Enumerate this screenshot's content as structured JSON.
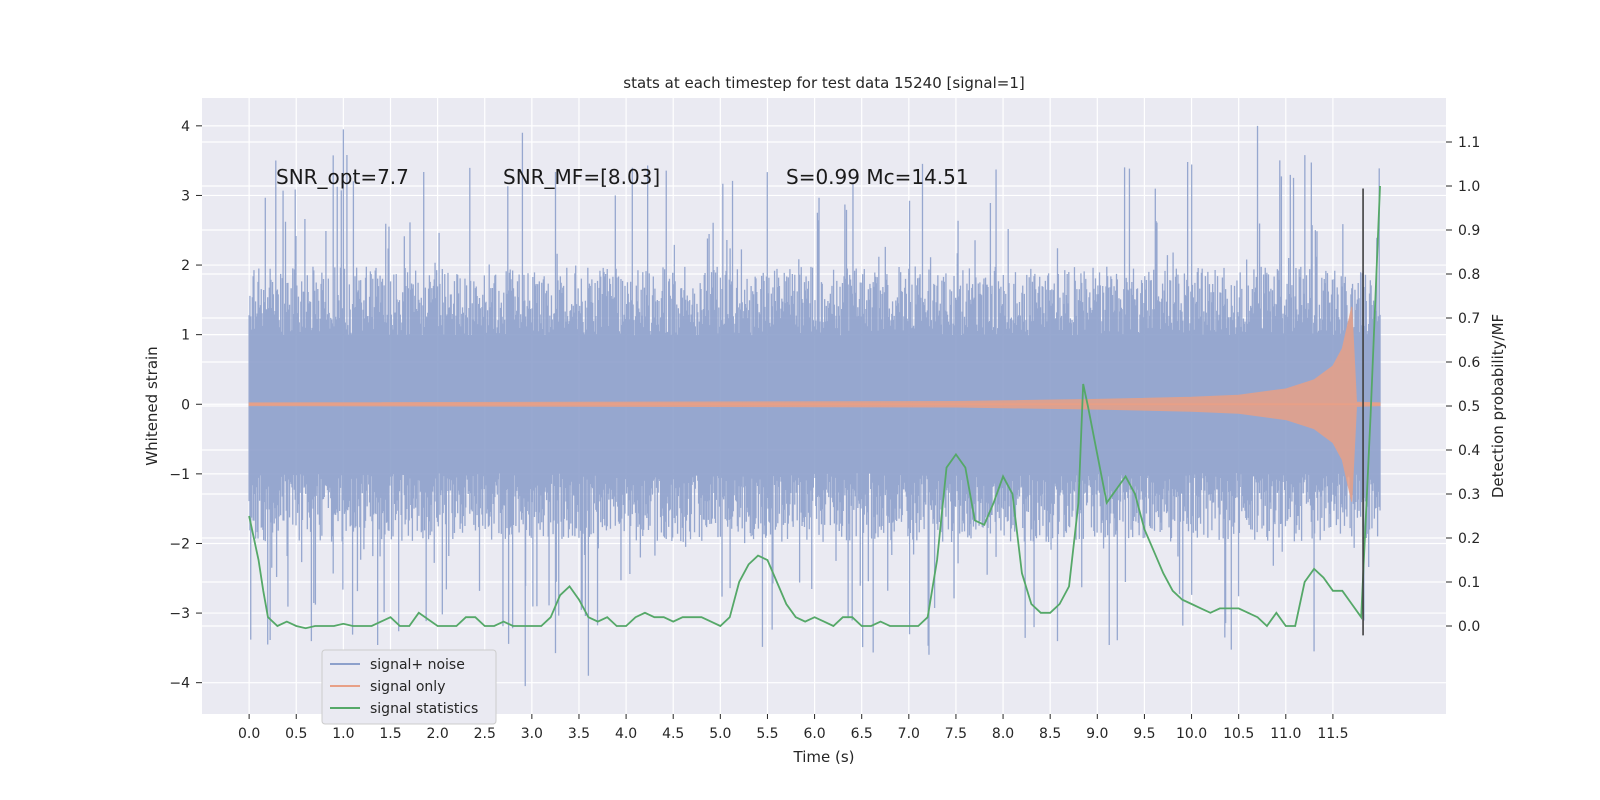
{
  "chart_data": {
    "type": "line",
    "title": "stats at each timestep for test data 15240 [signal=1]",
    "xlabel": "Time (s)",
    "ylabel_left": "Whitened strain",
    "ylabel_right": "Detection probability/MF",
    "xlim": [
      -0.5,
      12.7
    ],
    "ylim_left": [
      -4.45,
      4.4
    ],
    "ylim_right": [
      -0.2,
      1.2
    ],
    "x_ticks": [
      0.0,
      0.5,
      1.0,
      1.5,
      2.0,
      2.5,
      3.0,
      3.5,
      4.0,
      4.5,
      5.0,
      5.5,
      6.0,
      6.5,
      7.0,
      7.5,
      8.0,
      8.5,
      9.0,
      9.5,
      10.0,
      10.5,
      11.0,
      11.5
    ],
    "x_tick_labels": [
      "0.0",
      "0.5",
      "1.0",
      "1.5",
      "2.0",
      "2.5",
      "3.0",
      "3.5",
      "4.0",
      "4.5",
      "5.0",
      "5.5",
      "6.0",
      "6.5",
      "7.0",
      "7.5",
      "8.0",
      "8.5",
      "9.0",
      "9.5",
      "10.0",
      "10.5",
      "11.0",
      "11.5"
    ],
    "y_left_ticks": [
      4,
      3,
      2,
      1,
      0,
      -1,
      -2,
      -3,
      -4
    ],
    "y_left_tick_labels": [
      "4",
      "3",
      "2",
      "1",
      "0",
      "−1",
      "−2",
      "−3",
      "−4"
    ],
    "y_right_ticks": [
      1.1,
      1.0,
      0.9,
      0.8,
      0.7,
      0.6,
      0.5,
      0.4,
      0.3,
      0.2,
      0.1,
      0.0
    ],
    "y_right_tick_labels": [
      "1.1",
      "1.0",
      "0.9",
      "0.8",
      "0.7",
      "0.6",
      "0.5",
      "0.4",
      "0.3",
      "0.2",
      "0.1",
      "0.0"
    ],
    "grid": true,
    "legend_position": "bottom-left",
    "annotations": [
      {
        "id": "snr-opt",
        "text": "SNR_opt=7.7"
      },
      {
        "id": "snr-mf",
        "text": "SNR_MF=[8.03]"
      },
      {
        "id": "s-mc",
        "text": "S=0.99   Mc=14.51"
      }
    ],
    "series": [
      {
        "name": "signal+ noise",
        "color": "#8da0cb",
        "axis": "left",
        "x_range": [
          0.0,
          12.0
        ],
        "envelope": {
          "typical_amplitude": 1.8,
          "peak_upper": 4.0,
          "peak_lower": -4.05
        },
        "notable_extremes": [
          {
            "x": 1.0,
            "y": 3.95
          },
          {
            "x": 2.9,
            "y": 3.9
          },
          {
            "x": 2.93,
            "y": -4.05
          },
          {
            "x": 3.6,
            "y": -3.9
          },
          {
            "x": 10.7,
            "y": 4.0
          },
          {
            "x": 11.3,
            "y": -3.55
          }
        ]
      },
      {
        "name": "signal only",
        "color": "#e8a087",
        "axis": "left",
        "description_points": [
          {
            "x": 0.0,
            "amp": 0.02
          },
          {
            "x": 7.5,
            "amp": 0.04
          },
          {
            "x": 9.0,
            "amp": 0.07
          },
          {
            "x": 10.0,
            "amp": 0.1
          },
          {
            "x": 10.5,
            "amp": 0.13
          },
          {
            "x": 11.0,
            "amp": 0.22
          },
          {
            "x": 11.3,
            "amp": 0.35
          },
          {
            "x": 11.5,
            "amp": 0.55
          },
          {
            "x": 11.6,
            "amp": 0.8
          },
          {
            "x": 11.7,
            "amp": 1.4
          },
          {
            "x": 11.75,
            "amp": 0.03
          },
          {
            "x": 12.0,
            "amp": 0.02
          }
        ]
      },
      {
        "name": "signal statistics",
        "color": "#55a868",
        "axis": "right",
        "x": [
          0.0,
          0.1,
          0.15,
          0.2,
          0.3,
          0.4,
          0.5,
          0.6,
          0.7,
          0.8,
          0.9,
          1.0,
          1.1,
          1.2,
          1.3,
          1.4,
          1.5,
          1.6,
          1.7,
          1.8,
          1.9,
          2.0,
          2.1,
          2.2,
          2.3,
          2.4,
          2.5,
          2.6,
          2.7,
          2.8,
          2.9,
          3.0,
          3.1,
          3.2,
          3.3,
          3.4,
          3.5,
          3.6,
          3.7,
          3.8,
          3.9,
          4.0,
          4.1,
          4.2,
          4.3,
          4.4,
          4.5,
          4.6,
          4.7,
          4.8,
          4.9,
          5.0,
          5.1,
          5.2,
          5.3,
          5.4,
          5.5,
          5.6,
          5.7,
          5.8,
          5.9,
          6.0,
          6.1,
          6.2,
          6.3,
          6.4,
          6.5,
          6.6,
          6.7,
          6.8,
          6.9,
          7.0,
          7.1,
          7.2,
          7.3,
          7.4,
          7.5,
          7.6,
          7.7,
          7.8,
          7.9,
          8.0,
          8.1,
          8.2,
          8.3,
          8.4,
          8.5,
          8.6,
          8.7,
          8.8,
          8.85,
          8.9,
          9.0,
          9.1,
          9.2,
          9.3,
          9.4,
          9.5,
          9.6,
          9.7,
          9.8,
          9.9,
          10.0,
          10.1,
          10.2,
          10.3,
          10.4,
          10.5,
          10.6,
          10.7,
          10.8,
          10.9,
          11.0,
          11.1,
          11.2,
          11.3,
          11.4,
          11.5,
          11.6,
          11.7,
          11.8,
          11.9,
          12.0
        ],
        "y": [
          0.25,
          0.15,
          0.08,
          0.02,
          0.0,
          0.01,
          0.0,
          -0.005,
          0.0,
          0.0,
          0.0,
          0.005,
          0.0,
          0.0,
          0.0,
          0.01,
          0.02,
          0.0,
          0.0,
          0.03,
          0.015,
          0.0,
          0.0,
          0.0,
          0.02,
          0.02,
          0.0,
          0.0,
          0.01,
          0.0,
          0.0,
          0.0,
          0.0,
          0.02,
          0.07,
          0.09,
          0.06,
          0.02,
          0.01,
          0.02,
          0.0,
          0.0,
          0.02,
          0.03,
          0.02,
          0.02,
          0.01,
          0.02,
          0.02,
          0.02,
          0.01,
          0.0,
          0.02,
          0.1,
          0.14,
          0.16,
          0.15,
          0.1,
          0.05,
          0.02,
          0.01,
          0.02,
          0.01,
          0.0,
          0.02,
          0.02,
          0.0,
          0.0,
          0.01,
          0.0,
          0.0,
          0.0,
          0.0,
          0.02,
          0.15,
          0.36,
          0.39,
          0.36,
          0.24,
          0.23,
          0.28,
          0.34,
          0.3,
          0.12,
          0.05,
          0.03,
          0.03,
          0.05,
          0.09,
          0.28,
          0.55,
          0.5,
          0.39,
          0.28,
          0.31,
          0.34,
          0.3,
          0.22,
          0.17,
          0.12,
          0.08,
          0.06,
          0.05,
          0.04,
          0.03,
          0.04,
          0.04,
          0.04,
          0.03,
          0.02,
          0.0,
          0.03,
          0.0,
          0.0,
          0.1,
          0.13,
          0.11,
          0.08,
          0.08,
          0.05,
          0.02,
          0.48,
          1.0
        ]
      }
    ],
    "marker_line": {
      "x": 11.82,
      "y_range": [
        -3.32,
        3.1
      ],
      "color": "#404040"
    }
  }
}
